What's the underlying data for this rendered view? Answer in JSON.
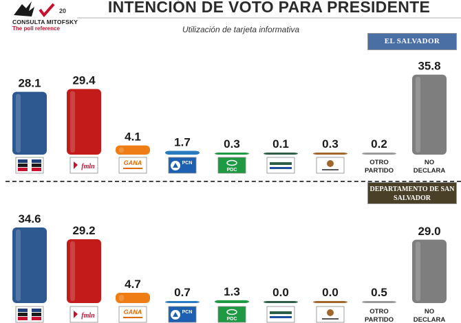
{
  "header": {
    "logo_brand": "CONSULTA MITOFSKY",
    "logo_tagline": "The poll reference",
    "logo_anniversary": "20",
    "title": "INTENCIÓN DE VOTO PARA PRESIDENTE",
    "subtitle": "Utilización de tarjeta informativa"
  },
  "colors": {
    "arena": "#2e5890",
    "fmln": "#c31a1a",
    "gana": "#ee7d15",
    "pcn": "#2a7ac0",
    "pdc": "#1e9a42",
    "party6": "#2c5d46",
    "party7": "#a0662c",
    "otro": "#9a9a9a",
    "no_declara": "#7e7e7e"
  },
  "chart_data": [
    {
      "type": "bar",
      "region_label": "EL SALVADOR",
      "categories": [
        "ARENA",
        "FMLN",
        "GANA",
        "PCN",
        "PDC",
        "party-6",
        "party-7",
        "OTRO PARTIDO",
        "NO DECLARA"
      ],
      "values": [
        28.1,
        29.4,
        4.1,
        1.7,
        0.3,
        0.1,
        0.3,
        0.2,
        35.8
      ]
    },
    {
      "type": "bar",
      "region_label": "DEPARTAMENTO DE SAN SALVADOR",
      "categories": [
        "ARENA",
        "FMLN",
        "GANA",
        "PCN",
        "PDC",
        "party-6",
        "party-7",
        "OTRO PARTIDO",
        "NO DECLARA"
      ],
      "values": [
        34.6,
        29.2,
        4.7,
        0.7,
        1.3,
        0.0,
        0.0,
        0.5,
        29.0
      ]
    }
  ],
  "party_logos": {
    "fmln_text": "fmln",
    "gana_text": "GANA",
    "pcn_text": "PCN",
    "pdc_text": "PDC"
  },
  "text_labels": {
    "otro_line1": "OTRO",
    "otro_line2": "PARTIDO",
    "nodec_line1": "NO",
    "nodec_line2": "DECLARA"
  }
}
